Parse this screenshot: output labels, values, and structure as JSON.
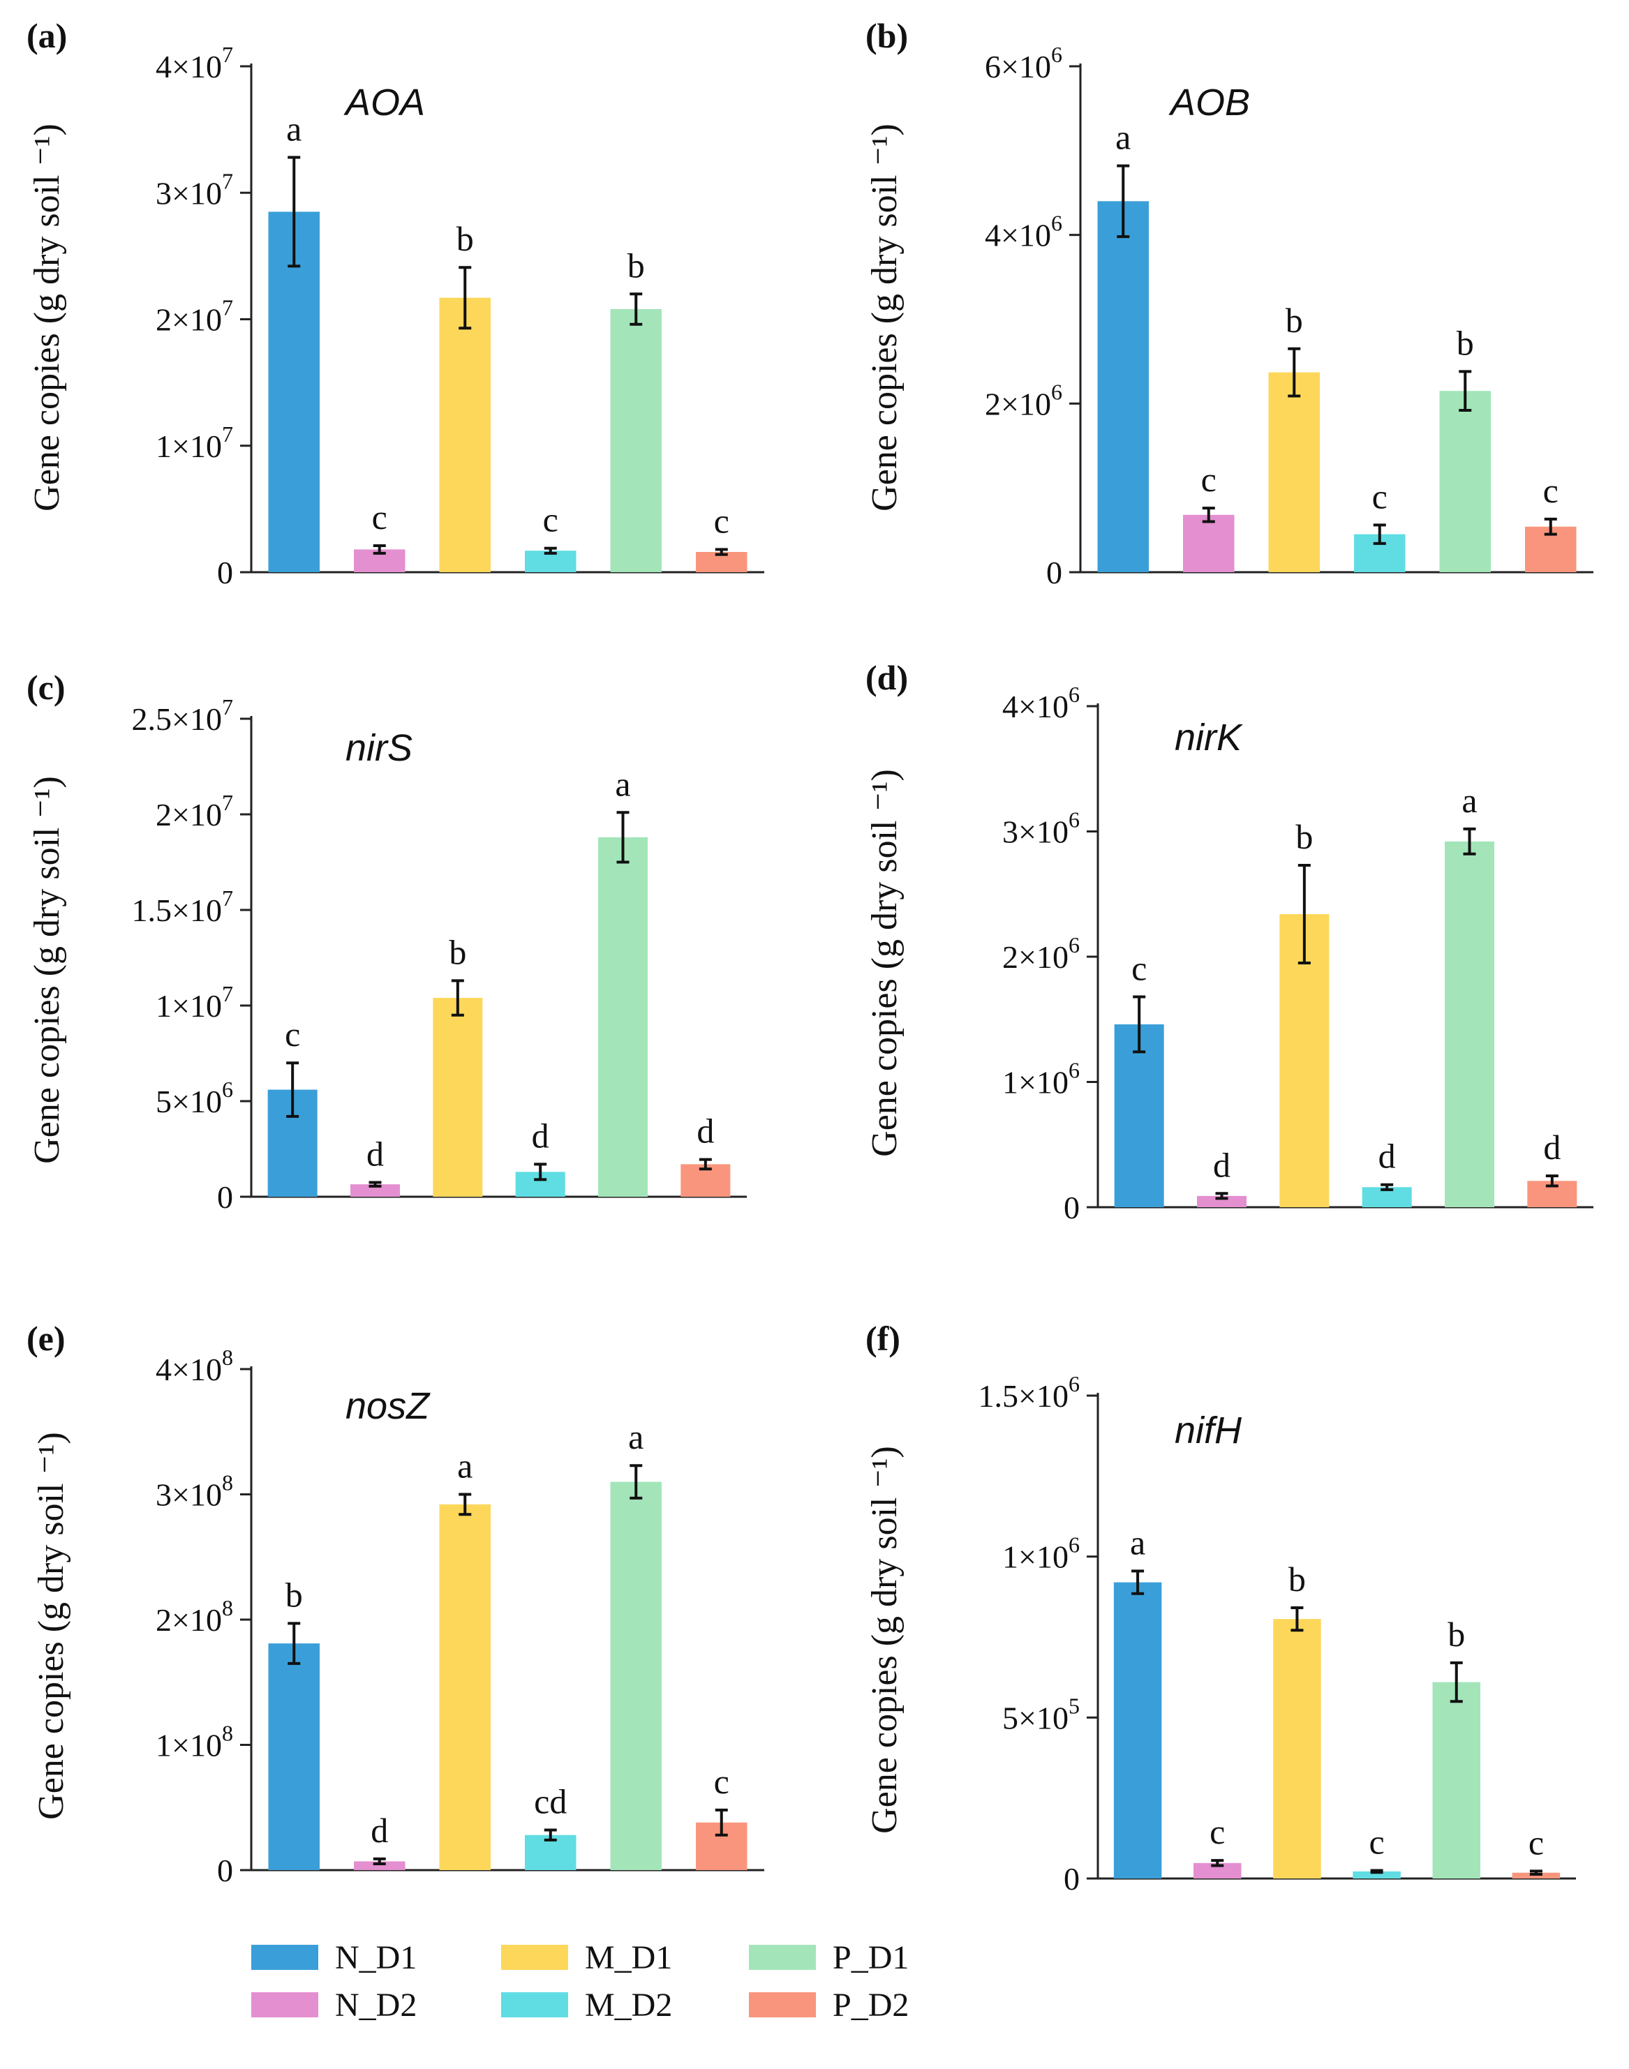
{
  "chart_data": [
    {
      "type": "bar",
      "panel_label": "(a)",
      "title": "AOA",
      "ylabel": "Gene copies  (g dry soil ⁻¹)",
      "ylim": [
        0,
        40000000
      ],
      "yticks": [
        0,
        10000000,
        20000000,
        30000000,
        40000000
      ],
      "ytick_labels": [
        {
          "mantissa": "0",
          "exp": ""
        },
        {
          "mantissa": "1×10",
          "exp": "7"
        },
        {
          "mantissa": "2×10",
          "exp": "7"
        },
        {
          "mantissa": "3×10",
          "exp": "7"
        },
        {
          "mantissa": "4×10",
          "exp": "7"
        }
      ],
      "categories": [
        "N_D1",
        "N_D2",
        "M_D1",
        "M_D2",
        "P_D1",
        "P_D2"
      ],
      "values": [
        28500000,
        1800000,
        21700000,
        1700000,
        20800000,
        1600000
      ],
      "errors": [
        4300000,
        300000,
        2400000,
        200000,
        1200000,
        200000
      ],
      "letters": [
        "a",
        "c",
        "b",
        "c",
        "b",
        "c"
      ]
    },
    {
      "type": "bar",
      "panel_label": "(b)",
      "title": "AOB",
      "ylabel": "Gene copies  (g dry soil ⁻¹)",
      "ylim": [
        0,
        6000000
      ],
      "yticks": [
        0,
        2000000,
        4000000,
        6000000
      ],
      "ytick_labels": [
        {
          "mantissa": "0",
          "exp": ""
        },
        {
          "mantissa": "2×10",
          "exp": "6"
        },
        {
          "mantissa": "4×10",
          "exp": "6"
        },
        {
          "mantissa": "6×10",
          "exp": "6"
        }
      ],
      "categories": [
        "N_D1",
        "N_D2",
        "M_D1",
        "M_D2",
        "P_D1",
        "P_D2"
      ],
      "values": [
        4400000,
        680000,
        2370000,
        450000,
        2150000,
        540000
      ],
      "errors": [
        420000,
        80000,
        280000,
        110000,
        230000,
        90000
      ],
      "letters": [
        "a",
        "c",
        "b",
        "c",
        "b",
        "c"
      ]
    },
    {
      "type": "bar",
      "panel_label": "(c)",
      "title": "nirS",
      "ylabel": "Gene copies  (g dry soil ⁻¹)",
      "ylim": [
        0,
        25000000
      ],
      "yticks": [
        0,
        5000000,
        10000000,
        15000000,
        20000000,
        25000000
      ],
      "ytick_labels": [
        {
          "mantissa": "0",
          "exp": ""
        },
        {
          "mantissa": "5×10",
          "exp": "6"
        },
        {
          "mantissa": "1×10",
          "exp": "7"
        },
        {
          "mantissa": "1.5×10",
          "exp": "7"
        },
        {
          "mantissa": "2×10",
          "exp": "7"
        },
        {
          "mantissa": "2.5×10",
          "exp": "7"
        }
      ],
      "categories": [
        "N_D1",
        "N_D2",
        "M_D1",
        "M_D2",
        "P_D1",
        "P_D2"
      ],
      "values": [
        5600000,
        650000,
        10400000,
        1300000,
        18800000,
        1700000
      ],
      "errors": [
        1400000,
        100000,
        900000,
        400000,
        1300000,
        250000
      ],
      "letters": [
        "c",
        "d",
        "b",
        "d",
        "a",
        "d"
      ]
    },
    {
      "type": "bar",
      "panel_label": "(d)",
      "title": "nirK",
      "ylabel": "Gene copies  (g dry soil ⁻¹)",
      "ylim": [
        0,
        4000000
      ],
      "yticks": [
        0,
        1000000,
        2000000,
        3000000,
        4000000
      ],
      "ytick_labels": [
        {
          "mantissa": "0",
          "exp": ""
        },
        {
          "mantissa": "1×10",
          "exp": "6"
        },
        {
          "mantissa": "2×10",
          "exp": "6"
        },
        {
          "mantissa": "3×10",
          "exp": "6"
        },
        {
          "mantissa": "4×10",
          "exp": "6"
        }
      ],
      "categories": [
        "N_D1",
        "N_D2",
        "M_D1",
        "M_D2",
        "P_D1",
        "P_D2"
      ],
      "values": [
        1460000,
        90000,
        2340000,
        160000,
        2920000,
        210000
      ],
      "errors": [
        220000,
        20000,
        390000,
        20000,
        100000,
        40000
      ],
      "letters": [
        "c",
        "d",
        "b",
        "d",
        "a",
        "d"
      ]
    },
    {
      "type": "bar",
      "panel_label": "(e)",
      "title": "nosZ",
      "ylabel": "Gene copies  (g dry soil ⁻¹)",
      "ylim": [
        0,
        400000000
      ],
      "yticks": [
        0,
        100000000,
        200000000,
        300000000,
        400000000
      ],
      "ytick_labels": [
        {
          "mantissa": "0",
          "exp": ""
        },
        {
          "mantissa": "1×10",
          "exp": "8"
        },
        {
          "mantissa": "2×10",
          "exp": "8"
        },
        {
          "mantissa": "3×10",
          "exp": "8"
        },
        {
          "mantissa": "4×10",
          "exp": "8"
        }
      ],
      "categories": [
        "N_D1",
        "N_D2",
        "M_D1",
        "M_D2",
        "P_D1",
        "P_D2"
      ],
      "values": [
        181000000,
        7000000,
        292000000,
        28000000,
        310000000,
        38000000
      ],
      "errors": [
        16000000,
        2000000,
        8000000,
        4000000,
        13000000,
        10000000
      ],
      "letters": [
        "b",
        "d",
        "a",
        "cd",
        "a",
        "c"
      ]
    },
    {
      "type": "bar",
      "panel_label": "(f)",
      "title": "nifH",
      "ylabel": "Gene copies  (g dry soil ⁻¹)",
      "ylim": [
        0,
        1500000
      ],
      "yticks": [
        0,
        500000,
        1000000,
        1500000
      ],
      "ytick_labels": [
        {
          "mantissa": "0",
          "exp": ""
        },
        {
          "mantissa": "5×10",
          "exp": "5"
        },
        {
          "mantissa": "1×10",
          "exp": "6"
        },
        {
          "mantissa": "1.5×10",
          "exp": "6"
        }
      ],
      "categories": [
        "N_D1",
        "N_D2",
        "M_D1",
        "M_D2",
        "P_D1",
        "P_D2"
      ],
      "values": [
        920000,
        48000,
        806000,
        22000,
        610000,
        18000
      ],
      "errors": [
        35000,
        8000,
        35000,
        3000,
        60000,
        5000
      ],
      "letters": [
        "a",
        "c",
        "b",
        "c",
        "b",
        "c"
      ]
    }
  ],
  "legend": {
    "position": "bottom",
    "items": [
      {
        "label": "N_D1",
        "color": "#3A9FD8"
      },
      {
        "label": "M_D1",
        "color": "#FCD75A"
      },
      {
        "label": "P_D1",
        "color": "#A3E5B9"
      },
      {
        "label": "N_D2",
        "color": "#E38FD0"
      },
      {
        "label": "M_D2",
        "color": "#5FDDE3"
      },
      {
        "label": "P_D2",
        "color": "#F9957C"
      }
    ]
  }
}
